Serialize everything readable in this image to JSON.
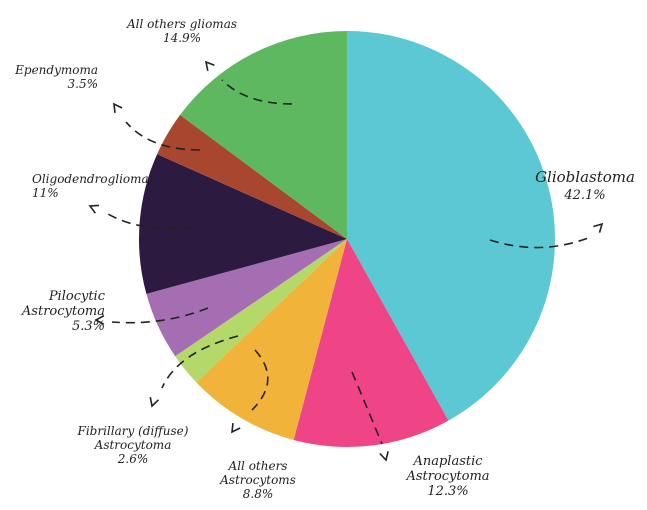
{
  "chart_data": {
    "type": "pie",
    "title": "",
    "start_angle_deg": 0,
    "direction": "clockwise",
    "slices": [
      {
        "name": "Glioblastoma",
        "label_lines": [
          "Glioblastoma"
        ],
        "pct_label": "42.1%",
        "value": 42.1,
        "color": "#5cc8d3"
      },
      {
        "name": "Anaplastic Astrocytoma",
        "label_lines": [
          "Anaplastic",
          "Astrocytoma"
        ],
        "pct_label": "12.3%",
        "value": 12.3,
        "color": "#ef4485"
      },
      {
        "name": "All others Astrocytoms",
        "label_lines": [
          "All others",
          "Astrocytoms"
        ],
        "pct_label": "8.8%",
        "value": 8.8,
        "color": "#f1b33a"
      },
      {
        "name": "Fibrillary (diffuse) Astrocytoma",
        "label_lines": [
          "Fibrillary (diffuse)",
          "Astrocytoma"
        ],
        "pct_label": "2.6%",
        "value": 2.6,
        "color": "#b5d86a"
      },
      {
        "name": "Pilocytic Astrocytoma",
        "label_lines": [
          "Pilocytic",
          "Astrocytoma"
        ],
        "pct_label": "5.3%",
        "value": 5.3,
        "color": "#a66eb2"
      },
      {
        "name": "Oligodendroglioma",
        "label_lines": [
          "Oligodendroglioma"
        ],
        "pct_label": "11%",
        "value": 11,
        "color": "#2d1a40"
      },
      {
        "name": "Ependymoma",
        "label_lines": [
          "Ependymoma"
        ],
        "pct_label": "3.5%",
        "value": 3.5,
        "color": "#a9462f"
      },
      {
        "name": "All others gliomas",
        "label_lines": [
          "All others gliomas"
        ],
        "pct_label": "14.9%",
        "value": 14.9,
        "color": "#5db85f"
      }
    ]
  }
}
